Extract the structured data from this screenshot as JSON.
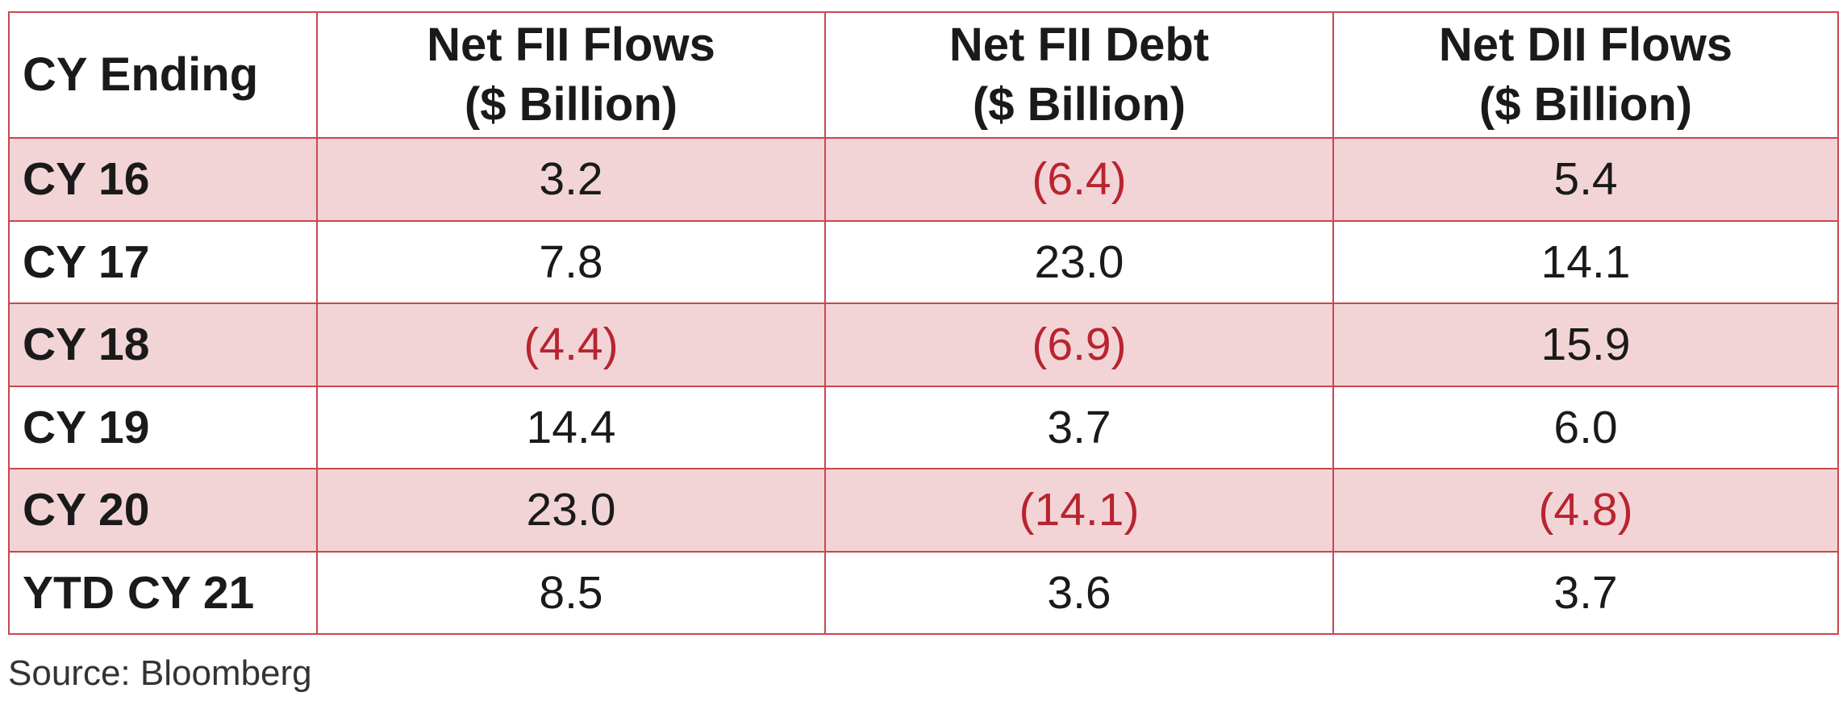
{
  "chart_data": {
    "type": "table",
    "columns": [
      {
        "label": "CY Ending"
      },
      {
        "line1": "Net FII Flows",
        "line2": "($ Billion)"
      },
      {
        "line1": "Net FII Debt",
        "line2": "($ Billion)"
      },
      {
        "line1": "Net DII Flows",
        "line2": "($ Billion)"
      }
    ],
    "rows": [
      {
        "label": "CY 16",
        "shaded": true,
        "cells": [
          "3.2",
          "(6.4)",
          "5.4"
        ],
        "negative": [
          false,
          true,
          false
        ]
      },
      {
        "label": "CY 17",
        "shaded": false,
        "cells": [
          "7.8",
          "23.0",
          "14.1"
        ],
        "negative": [
          false,
          false,
          false
        ]
      },
      {
        "label": "CY 18",
        "shaded": true,
        "cells": [
          "(4.4)",
          "(6.9)",
          "15.9"
        ],
        "negative": [
          true,
          true,
          false
        ]
      },
      {
        "label": "CY 19",
        "shaded": false,
        "cells": [
          "14.4",
          "3.7",
          "6.0"
        ],
        "negative": [
          false,
          false,
          false
        ]
      },
      {
        "label": "CY 20",
        "shaded": true,
        "cells": [
          "23.0",
          "(14.1)",
          "(4.8)"
        ],
        "negative": [
          false,
          true,
          true
        ]
      },
      {
        "label": "YTD CY 21",
        "shaded": false,
        "cells": [
          "8.5",
          "3.6",
          "3.7"
        ],
        "negative": [
          false,
          false,
          false
        ]
      }
    ],
    "values": {
      "Net FII Flows": [
        3.2,
        7.8,
        -4.4,
        14.4,
        23.0,
        8.5
      ],
      "Net FII Debt": [
        -6.4,
        23.0,
        -6.9,
        3.7,
        -14.1,
        3.6
      ],
      "Net DII Flows": [
        5.4,
        14.1,
        15.9,
        6.0,
        -4.8,
        3.7
      ]
    }
  },
  "source": "Source: Bloomberg",
  "colors": {
    "border": "#c9474f",
    "shaded_row": "#f2d4d7",
    "negative_text": "#b8242f"
  }
}
